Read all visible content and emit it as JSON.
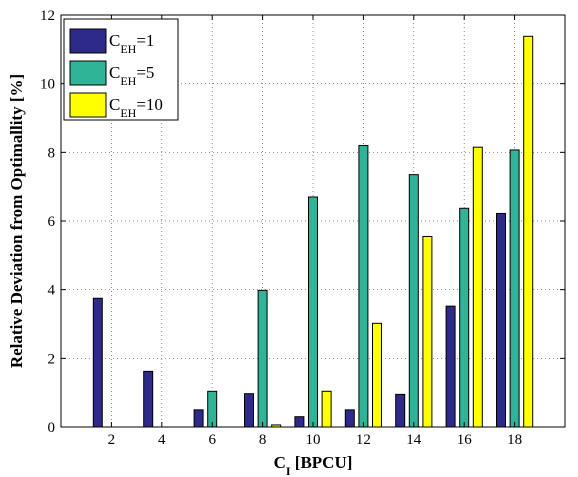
{
  "chart_data": {
    "type": "bar",
    "categories": [
      "2",
      "4",
      "6",
      "8",
      "10",
      "12",
      "14",
      "16",
      "18"
    ],
    "series": [
      {
        "name": "C_EH=1",
        "name_main": "C",
        "name_sub": "EH",
        "name_tail": "=1",
        "color": "#2e2a8a",
        "values": [
          3.75,
          1.62,
          0.5,
          0.97,
          0.3,
          0.5,
          0.95,
          3.52,
          6.22
        ]
      },
      {
        "name": "C_EH=5",
        "name_main": "C",
        "name_sub": "EH",
        "name_tail": "=5",
        "color": "#2fb497",
        "values": [
          0,
          0,
          1.04,
          3.98,
          6.7,
          8.2,
          7.35,
          6.37,
          8.07
        ]
      },
      {
        "name": "C_EH=10",
        "name_main": "C",
        "name_sub": "EH",
        "name_tail": "=10",
        "color": "#ffff00",
        "values": [
          0,
          0,
          0,
          0.06,
          1.04,
          3.02,
          5.55,
          8.15,
          11.38
        ]
      }
    ],
    "xlabel_main": "C",
    "xlabel_sub": "I",
    "xlabel_tail": " [BPCU]",
    "ylabel": "Relative Deviation from Optimallity [%]",
    "ylim": [
      0,
      12
    ],
    "yticks": [
      0,
      2,
      4,
      6,
      8,
      10,
      12
    ],
    "grid": true,
    "legend_position": "top-left"
  }
}
